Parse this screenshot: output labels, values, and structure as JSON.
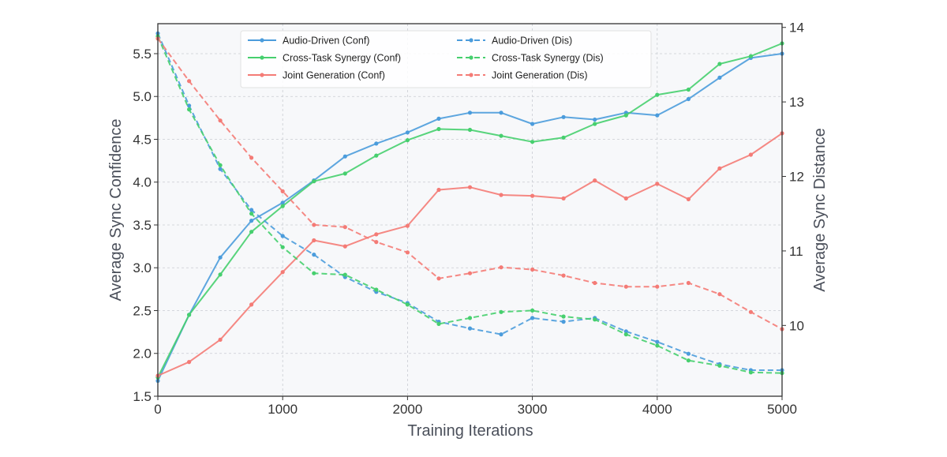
{
  "chart_data": {
    "type": "line",
    "title": "",
    "xlabel": "Training Iterations",
    "ylabel_left": "Average Sync Confidence",
    "ylabel_right": "Average Sync Distance",
    "xlim": [
      0,
      5000
    ],
    "ylim_left": [
      1.5,
      5.85
    ],
    "ylim_right": [
      9.05,
      14.05
    ],
    "xticks": [
      0,
      1000,
      2000,
      3000,
      4000,
      5000
    ],
    "yticks_left": [
      1.5,
      2.0,
      2.5,
      3.0,
      3.5,
      4.0,
      4.5,
      5.0,
      5.5
    ],
    "yticks_right": [
      10,
      11,
      12,
      13,
      14
    ],
    "grid": true,
    "legend_position": "top-center",
    "x": [
      0,
      250,
      500,
      750,
      1000,
      1250,
      1500,
      1750,
      2000,
      2250,
      2500,
      2750,
      3000,
      3250,
      3500,
      3750,
      4000,
      4250,
      4500,
      4750,
      5000
    ],
    "series": [
      {
        "name": "Audio-Driven (Conf)",
        "axis": "left",
        "style": "solid",
        "color": "#4b9cdc",
        "values": [
          1.68,
          2.45,
          3.12,
          3.55,
          3.76,
          4.02,
          4.3,
          4.45,
          4.58,
          4.74,
          4.81,
          4.81,
          4.68,
          4.76,
          4.73,
          4.81,
          4.78,
          4.97,
          5.22,
          5.45,
          5.5
        ]
      },
      {
        "name": "Cross-Task Synergy (Conf)",
        "axis": "left",
        "style": "solid",
        "color": "#46cf6e",
        "values": [
          1.72,
          2.45,
          2.92,
          3.42,
          3.72,
          4.01,
          4.1,
          4.31,
          4.49,
          4.62,
          4.61,
          4.54,
          4.47,
          4.52,
          4.68,
          4.78,
          5.02,
          5.08,
          5.38,
          5.47,
          5.62
        ]
      },
      {
        "name": "Joint Generation (Conf)",
        "axis": "left",
        "style": "solid",
        "color": "#f47b76",
        "values": [
          1.74,
          1.9,
          2.16,
          2.57,
          2.95,
          3.32,
          3.25,
          3.39,
          3.49,
          3.91,
          3.94,
          3.85,
          3.84,
          3.81,
          4.02,
          3.81,
          3.98,
          3.8,
          4.16,
          4.32,
          4.57
        ]
      },
      {
        "name": "Audio-Driven (Dis)",
        "axis": "right",
        "style": "dashed",
        "color": "#4b9cdc",
        "values": [
          13.92,
          12.95,
          12.1,
          11.55,
          11.2,
          10.95,
          10.65,
          10.45,
          10.3,
          10.05,
          9.96,
          9.88,
          10.1,
          10.05,
          10.1,
          9.92,
          9.78,
          9.62,
          9.48,
          9.4,
          9.4
        ]
      },
      {
        "name": "Cross-Task Synergy (Dis)",
        "axis": "right",
        "style": "dashed",
        "color": "#46cf6e",
        "values": [
          13.88,
          12.9,
          12.15,
          11.5,
          11.05,
          10.7,
          10.68,
          10.48,
          10.28,
          10.02,
          10.1,
          10.18,
          10.2,
          10.12,
          10.08,
          9.88,
          9.73,
          9.53,
          9.46,
          9.37,
          9.36
        ]
      },
      {
        "name": "Joint Generation (Dis)",
        "axis": "right",
        "style": "dashed",
        "color": "#f47b76",
        "values": [
          13.85,
          13.28,
          12.75,
          12.25,
          11.8,
          11.35,
          11.32,
          11.12,
          10.98,
          10.63,
          10.7,
          10.78,
          10.75,
          10.67,
          10.57,
          10.52,
          10.52,
          10.57,
          10.42,
          10.18,
          9.95
        ]
      }
    ]
  }
}
